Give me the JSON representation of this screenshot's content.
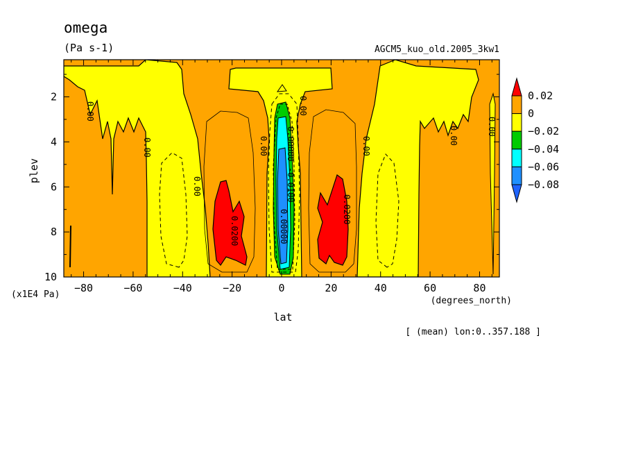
{
  "title": "omega",
  "units": "(Pa s-1)",
  "dataset": "AGCM5_kuo_old.2005_3kw1",
  "xlabel": "lat",
  "x_units": "(degrees_north)",
  "ylabel": "plev",
  "y_units": "(x1E4 Pa)",
  "note": "[ (mean) lon:0..357.188 ]",
  "chart_data": {
    "type": "heatmap",
    "title": "omega",
    "subtitle": "(Pa s-1)",
    "xlabel": "lat",
    "ylabel": "plev",
    "xlim": [
      -88,
      88
    ],
    "ylim": [
      10,
      0.35
    ],
    "y_inverted": true,
    "x_ticks": [
      -80,
      -60,
      -40,
      -20,
      0,
      20,
      40,
      60,
      80
    ],
    "y_ticks": [
      2,
      4,
      6,
      8,
      10
    ],
    "colorbar": {
      "levels": [
        "0.02",
        "0",
        "-0.02",
        "-0.04",
        "-0.06",
        "-0.08"
      ],
      "colors": [
        "#ff0000",
        "#ffa500",
        "#ffff00",
        "#00cc00",
        "#00ffff",
        "#1e90ff",
        "#1e64ff"
      ]
    },
    "contour_labels": [
      "0.00",
      "0.0200",
      "0.00000",
      "-0.0100"
    ],
    "regions": [
      {
        "value_range": "0 to 0.02",
        "desc": "background sinking"
      },
      {
        "value_range": "-0.02 to 0",
        "desc": "ascent near 0 lat, 40-55 lat, upper levels"
      },
      {
        "value_range": ">0.02",
        "lat_center": -20,
        "plev": [
          5.7,
          9.3
        ]
      },
      {
        "value_range": ">0.02",
        "lat_center": 20,
        "plev": [
          5.5,
          9.3
        ]
      },
      {
        "value_range": "<-0.06",
        "lat_center": 0,
        "plev": [
          3.0,
          9.6
        ]
      }
    ],
    "grid": false
  }
}
